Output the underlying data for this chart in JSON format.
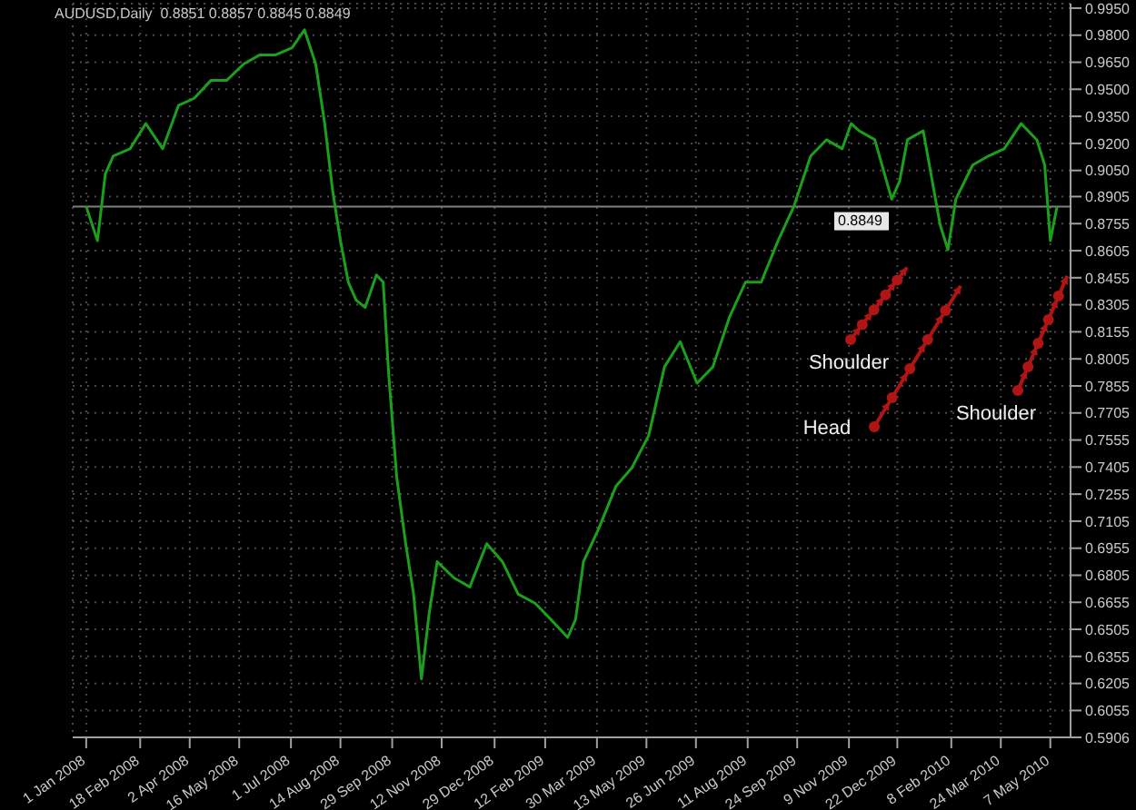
{
  "chart_data": {
    "type": "line",
    "title": "AUDUSD,Daily  0.8851 0.8857 0.8845 0.8849",
    "x": [
      "2008-01-01",
      "2008-01-11",
      "2008-01-18",
      "2008-01-25",
      "2008-02-09",
      "2008-02-23",
      "2008-03-09",
      "2008-03-23",
      "2008-04-06",
      "2008-04-21",
      "2008-05-05",
      "2008-05-20",
      "2008-06-03",
      "2008-06-17",
      "2008-07-02",
      "2008-07-13",
      "2008-07-23",
      "2008-07-31",
      "2008-08-07",
      "2008-08-14",
      "2008-08-21",
      "2008-08-28",
      "2008-09-05",
      "2008-09-15",
      "2008-09-21",
      "2008-09-26",
      "2008-10-03",
      "2008-10-11",
      "2008-10-18",
      "2008-10-25",
      "2008-11-01",
      "2008-11-08",
      "2008-11-23",
      "2008-12-07",
      "2008-12-22",
      "2009-01-05",
      "2009-01-19",
      "2009-02-03",
      "2009-02-17",
      "2009-03-04",
      "2009-03-11",
      "2009-03-18",
      "2009-04-01",
      "2009-04-16",
      "2009-04-30",
      "2009-05-15",
      "2009-05-29",
      "2009-06-12",
      "2009-06-27",
      "2009-07-11",
      "2009-07-26",
      "2009-08-09",
      "2009-08-23",
      "2009-09-07",
      "2009-09-21",
      "2009-10-06",
      "2009-10-20",
      "2009-11-03",
      "2009-11-11",
      "2009-11-18",
      "2009-12-02",
      "2009-12-17",
      "2009-12-24",
      "2009-12-31",
      "2010-01-14",
      "2010-01-29",
      "2010-02-05",
      "2010-02-12",
      "2010-02-27",
      "2010-03-13",
      "2010-03-27",
      "2010-04-11",
      "2010-04-25",
      "2010-05-02",
      "2010-05-07",
      "2010-05-13"
    ],
    "series": [
      {
        "color": "#1aa01a",
        "values": [
          0.885,
          0.866,
          0.903,
          0.913,
          0.917,
          0.931,
          0.917,
          0.941,
          0.945,
          0.955,
          0.955,
          0.964,
          0.969,
          0.969,
          0.973,
          0.983,
          0.964,
          0.931,
          0.894,
          0.866,
          0.843,
          0.833,
          0.829,
          0.847,
          0.843,
          0.791,
          0.735,
          0.698,
          0.67,
          0.623,
          0.66,
          0.688,
          0.679,
          0.674,
          0.698,
          0.688,
          0.67,
          0.665,
          0.656,
          0.646,
          0.656,
          0.688,
          0.707,
          0.73,
          0.74,
          0.758,
          0.796,
          0.81,
          0.787,
          0.796,
          0.824,
          0.843,
          0.843,
          0.866,
          0.885,
          0.913,
          0.922,
          0.917,
          0.931,
          0.927,
          0.922,
          0.889,
          0.899,
          0.922,
          0.927,
          0.875,
          0.861,
          0.889,
          0.908,
          0.913,
          0.917,
          0.931,
          0.922,
          0.908,
          0.866,
          0.885
        ]
      }
    ],
    "xlim": [
      "2007-12-20",
      "2010-05-25"
    ],
    "xticks": [
      {
        "value": "2008-01-01",
        "label": "1 Jan 2008"
      },
      {
        "value": "2008-02-18",
        "label": "18 Feb 2008"
      },
      {
        "value": "2008-04-02",
        "label": "2 Apr 2008"
      },
      {
        "value": "2008-05-16",
        "label": "16 May 2008"
      },
      {
        "value": "2008-07-01",
        "label": "1 Jul 2008"
      },
      {
        "value": "2008-08-14",
        "label": "14 Aug 2008"
      },
      {
        "value": "2008-09-29",
        "label": "29 Sep 2008"
      },
      {
        "value": "2008-11-12",
        "label": "12 Nov 2008"
      },
      {
        "value": "2008-12-29",
        "label": "29 Dec 2008"
      },
      {
        "value": "2009-02-12",
        "label": "12 Feb 2009"
      },
      {
        "value": "2009-03-30",
        "label": "30 Mar 2009"
      },
      {
        "value": "2009-05-13",
        "label": "13 May 2009"
      },
      {
        "value": "2009-06-26",
        "label": "26 Jun 2009"
      },
      {
        "value": "2009-08-11",
        "label": "11 Aug 2009"
      },
      {
        "value": "2009-09-24",
        "label": "24 Sep 2009"
      },
      {
        "value": "2009-11-09",
        "label": "9 Nov 2009"
      },
      {
        "value": "2009-12-22",
        "label": "22 Dec 2009"
      },
      {
        "value": "2010-02-08",
        "label": "8 Feb 2010"
      },
      {
        "value": "2010-03-24",
        "label": "24 Mar 2010"
      },
      {
        "value": "2010-05-07",
        "label": "7 May 2010"
      }
    ],
    "ylim": [
      0.5906,
      0.9975
    ],
    "yticks": [
      {
        "value": 0.995,
        "label": "0.9950"
      },
      {
        "value": 0.98,
        "label": "0.9800"
      },
      {
        "value": 0.965,
        "label": "0.9650"
      },
      {
        "value": 0.95,
        "label": "0.9500"
      },
      {
        "value": 0.935,
        "label": "0.9350"
      },
      {
        "value": 0.92,
        "label": "0.9200"
      },
      {
        "value": 0.905,
        "label": "0.9050"
      },
      {
        "value": 0.8905,
        "label": "0.8905"
      },
      {
        "value": 0.8755,
        "label": "0.8755"
      },
      {
        "value": 0.8605,
        "label": "0.8605"
      },
      {
        "value": 0.8455,
        "label": "0.8455"
      },
      {
        "value": 0.8305,
        "label": "0.8305"
      },
      {
        "value": 0.8155,
        "label": "0.8155"
      },
      {
        "value": 0.8005,
        "label": "0.8005"
      },
      {
        "value": 0.7855,
        "label": "0.7855"
      },
      {
        "value": 0.7705,
        "label": "0.7705"
      },
      {
        "value": 0.7555,
        "label": "0.7555"
      },
      {
        "value": 0.7405,
        "label": "0.7405"
      },
      {
        "value": 0.7255,
        "label": "0.7255"
      },
      {
        "value": 0.7105,
        "label": "0.7105"
      },
      {
        "value": 0.6955,
        "label": "0.6955"
      },
      {
        "value": 0.6805,
        "label": "0.6805"
      },
      {
        "value": 0.6655,
        "label": "0.6655"
      },
      {
        "value": 0.6505,
        "label": "0.6505"
      },
      {
        "value": 0.6355,
        "label": "0.6355"
      },
      {
        "value": 0.6205,
        "label": "0.6205"
      },
      {
        "value": 0.6055,
        "label": "0.6055"
      },
      {
        "value": 0.5906,
        "label": "0.5906"
      }
    ],
    "ref_lines": [
      {
        "axis": "y",
        "value": 0.8849,
        "label": "0.8849",
        "color": "#808080"
      }
    ],
    "annotations": [
      "Shoulder",
      "Head",
      "Shoulder"
    ],
    "grid": true
  }
}
